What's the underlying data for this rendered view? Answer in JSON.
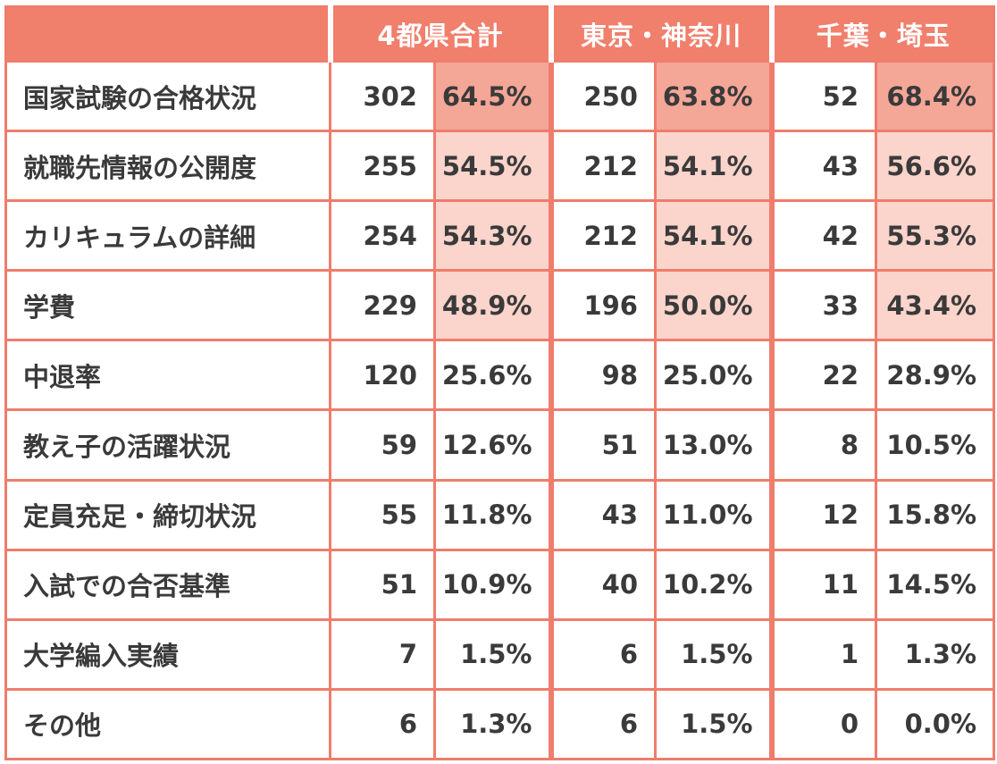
{
  "header": {
    "col0": "",
    "groups": [
      "4都県合計",
      "東京・神奈川",
      "千葉・埼玉"
    ]
  },
  "rows": [
    {
      "label": "国家試験の合格状況",
      "values": [
        "302",
        "64.5%",
        "250",
        "63.8%",
        "52",
        "68.4%"
      ]
    },
    {
      "label": "就職先情報の公開度",
      "values": [
        "255",
        "54.5%",
        "212",
        "54.1%",
        "43",
        "56.6%"
      ]
    },
    {
      "label": "カリキュラムの詳細",
      "values": [
        "254",
        "54.3%",
        "212",
        "54.1%",
        "42",
        "55.3%"
      ]
    },
    {
      "label": "学費",
      "values": [
        "229",
        "48.9%",
        "196",
        "50.0%",
        "33",
        "43.4%"
      ]
    },
    {
      "label": "中退率",
      "values": [
        "120",
        "25.6%",
        "98",
        "25.0%",
        "22",
        "28.9%"
      ]
    },
    {
      "label": "教え子の活躍状況",
      "values": [
        "59",
        "12.6%",
        "51",
        "13.0%",
        "8",
        "10.5%"
      ]
    },
    {
      "label": "定員充足・締切状況",
      "values": [
        "55",
        "11.8%",
        "43",
        "11.0%",
        "12",
        "15.8%"
      ]
    },
    {
      "label": "入試での合否基準",
      "values": [
        "51",
        "10.9%",
        "40",
        "10.2%",
        "11",
        "14.5%"
      ]
    },
    {
      "label": "大学編入実績",
      "values": [
        "7",
        "1.5%",
        "6",
        "1.5%",
        "1",
        "1.3%"
      ]
    },
    {
      "label": "その他",
      "values": [
        "6",
        "1.3%",
        "6",
        "1.5%",
        "0",
        "0.0%"
      ]
    }
  ],
  "colors": {
    "header_bg": "#f07f6c",
    "border": "#ef7d6c",
    "highlight_strong": "#f4a697",
    "highlight_light": "#fbd4cb",
    "text": "#3a3a3a"
  }
}
